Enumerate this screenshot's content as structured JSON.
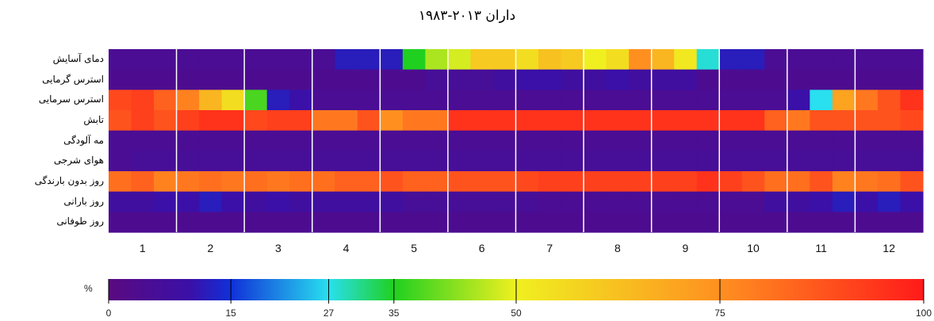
{
  "chart_data": {
    "type": "heatmap",
    "title": "داران ۲۰۱۳-۱۹۸۳",
    "x_categories": [
      "1",
      "2",
      "3",
      "4",
      "5",
      "6",
      "7",
      "8",
      "9",
      "10",
      "11",
      "12"
    ],
    "y_categories": [
      "دمای آسایش",
      "استرس گرمایی",
      "استرس سرمایی",
      "تابش",
      "مه آلودگی",
      "هوای شرجی",
      "روز بدون بارندگی",
      "روز بارانی",
      "روز طوفانی"
    ],
    "columns_per_month": 3,
    "rows": [
      [
        5,
        5,
        5,
        5,
        5,
        5,
        5,
        5,
        5,
        5,
        12,
        12,
        12,
        35,
        45,
        48,
        60,
        60,
        55,
        62,
        60,
        50,
        55,
        75,
        65,
        52,
        28,
        12,
        12,
        5,
        5,
        5,
        5,
        5,
        5,
        5
      ],
      [
        4,
        4,
        4,
        4,
        4,
        4,
        4,
        4,
        4,
        4,
        4,
        4,
        4,
        4,
        6,
        6,
        6,
        8,
        10,
        10,
        8,
        8,
        10,
        8,
        8,
        8,
        4,
        4,
        4,
        4,
        4,
        4,
        4,
        4,
        4,
        4
      ],
      [
        90,
        92,
        85,
        78,
        65,
        55,
        38,
        12,
        10,
        5,
        5,
        5,
        5,
        5,
        5,
        5,
        5,
        5,
        5,
        5,
        5,
        5,
        5,
        5,
        5,
        5,
        5,
        5,
        5,
        5,
        10,
        27,
        70,
        80,
        88,
        95
      ],
      [
        88,
        92,
        88,
        92,
        95,
        95,
        90,
        92,
        92,
        80,
        80,
        88,
        75,
        80,
        80,
        95,
        95,
        95,
        95,
        95,
        95,
        95,
        95,
        95,
        95,
        95,
        95,
        95,
        95,
        85,
        80,
        88,
        88,
        88,
        88,
        90
      ],
      [
        5,
        5,
        5,
        5,
        5,
        5,
        5,
        5,
        5,
        5,
        5,
        5,
        5,
        5,
        5,
        5,
        5,
        5,
        5,
        5,
        5,
        5,
        5,
        5,
        5,
        5,
        5,
        5,
        5,
        5,
        5,
        5,
        5,
        5,
        5,
        5
      ],
      [
        5,
        6,
        6,
        6,
        6,
        6,
        6,
        6,
        6,
        6,
        6,
        6,
        6,
        6,
        6,
        6,
        6,
        6,
        6,
        6,
        6,
        6,
        6,
        6,
        6,
        6,
        6,
        6,
        6,
        6,
        6,
        6,
        6,
        6,
        6,
        6
      ],
      [
        82,
        85,
        78,
        80,
        82,
        80,
        82,
        80,
        82,
        82,
        85,
        85,
        88,
        85,
        85,
        88,
        88,
        88,
        90,
        92,
        92,
        92,
        92,
        92,
        92,
        92,
        95,
        92,
        88,
        82,
        82,
        88,
        78,
        80,
        82,
        88
      ],
      [
        8,
        8,
        10,
        10,
        12,
        10,
        8,
        10,
        8,
        8,
        8,
        8,
        8,
        6,
        6,
        6,
        6,
        6,
        6,
        5,
        5,
        5,
        5,
        5,
        5,
        5,
        5,
        5,
        5,
        8,
        8,
        10,
        12,
        10,
        12,
        10
      ],
      [
        4,
        4,
        4,
        4,
        4,
        4,
        4,
        4,
        4,
        4,
        4,
        4,
        4,
        4,
        4,
        4,
        4,
        4,
        4,
        4,
        4,
        4,
        4,
        4,
        4,
        4,
        4,
        4,
        4,
        4,
        4,
        4,
        4,
        4,
        4,
        4
      ]
    ],
    "colorbar": {
      "label": "%",
      "min": 0,
      "max": 100,
      "ticks": [
        0,
        15,
        27,
        35,
        50,
        75,
        100
      ],
      "colors": [
        "#5a0a80",
        "#3a10a8",
        "#1030d8",
        "#28e0f0",
        "#20d020",
        "#f0f020",
        "#ff9020",
        "#ff1a1a"
      ],
      "stops": [
        0,
        10,
        15,
        27,
        35,
        50,
        75,
        100
      ]
    },
    "grid": false,
    "legend": "bottom"
  }
}
